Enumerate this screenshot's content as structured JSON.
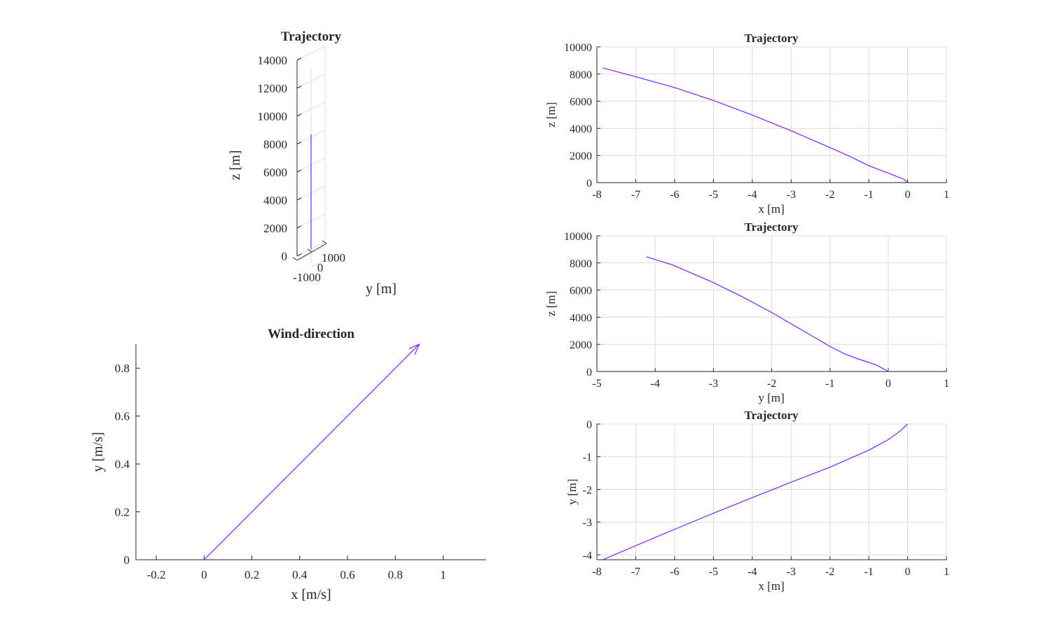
{
  "colors": {
    "series": "#7f1fff",
    "axis": "#262626",
    "grid": "#dcdcdc"
  },
  "chart_data": [
    {
      "id": "traj3d",
      "type": "line",
      "title": "Trajectory",
      "zlabel": "z [m]",
      "ylabel": "y [m]",
      "zlim": [
        0,
        14000
      ],
      "z_ticks": [
        0,
        2000,
        4000,
        6000,
        8000,
        10000,
        12000,
        14000
      ],
      "y_ticks": [
        -1000,
        0,
        1000
      ],
      "z_tick_labels": [
        "0",
        "2000",
        "4000",
        "6000",
        "8000",
        "10000",
        "12000",
        "14000"
      ],
      "y_tick_labels": [
        "-1000",
        "0",
        "1000"
      ],
      "series": [
        {
          "z": [
            0,
            8500
          ]
        }
      ]
    },
    {
      "id": "wind",
      "type": "line",
      "title": "Wind-direction",
      "xlabel": "x [m/s]",
      "ylabel": "y [m/s]",
      "xlim": [
        -0.2853,
        1.1803
      ],
      "ylim": [
        0,
        0.9
      ],
      "x_ticks": [
        -0.2,
        0,
        0.2,
        0.4,
        0.6,
        0.8,
        1
      ],
      "y_ticks": [
        0,
        0.2,
        0.4,
        0.6,
        0.8
      ],
      "x_tick_labels": [
        "-0.2",
        "0",
        "0.2",
        "0.4",
        "0.6",
        "0.8",
        "1"
      ],
      "y_tick_labels": [
        "0",
        "0.2",
        "0.4",
        "0.6",
        "0.8"
      ],
      "grid": false,
      "arrow": {
        "x0": 0,
        "y0": 0,
        "dx": 0.9,
        "dy": 0.9
      }
    },
    {
      "id": "xz",
      "type": "line",
      "title": "Trajectory",
      "xlabel": "x [m]",
      "ylabel": "z [m]",
      "xlim": [
        -8,
        1
      ],
      "ylim": [
        0,
        10000
      ],
      "x_ticks": [
        -8,
        -7,
        -6,
        -5,
        -4,
        -3,
        -2,
        -1,
        0,
        1
      ],
      "y_ticks": [
        0,
        2000,
        4000,
        6000,
        8000,
        10000
      ],
      "x_tick_labels": [
        "-8",
        "-7",
        "-6",
        "-5",
        "-4",
        "-3",
        "-2",
        "-1",
        "0",
        "1"
      ],
      "y_tick_labels": [
        "0",
        "2000",
        "4000",
        "6000",
        "8000",
        "10000"
      ],
      "grid": true,
      "series": [
        {
          "x": [
            -7.85,
            -7,
            -6,
            -5,
            -4,
            -3,
            -2,
            -1.5,
            -1,
            -0.5,
            -0.1,
            0
          ],
          "y": [
            8450,
            7800,
            7000,
            6050,
            4980,
            3820,
            2580,
            1950,
            1250,
            700,
            250,
            0
          ]
        }
      ]
    },
    {
      "id": "yz",
      "type": "line",
      "title": "Trajectory",
      "xlabel": "y [m]",
      "ylabel": "z [m]",
      "xlim": [
        -5,
        1
      ],
      "ylim": [
        0,
        10000
      ],
      "x_ticks": [
        -5,
        -4,
        -3,
        -2,
        -1,
        0,
        1
      ],
      "y_ticks": [
        0,
        2000,
        4000,
        6000,
        8000,
        10000
      ],
      "x_tick_labels": [
        "-5",
        "-4",
        "-3",
        "-2",
        "-1",
        "0",
        "1"
      ],
      "y_tick_labels": [
        "0",
        "2000",
        "4000",
        "6000",
        "8000",
        "10000"
      ],
      "grid": true,
      "series": [
        {
          "x": [
            -4.15,
            -3.7,
            -3,
            -2.5,
            -2,
            -1.5,
            -1,
            -0.75,
            -0.5,
            -0.2,
            0
          ],
          "y": [
            8450,
            7850,
            6550,
            5500,
            4350,
            3100,
            1850,
            1300,
            900,
            480,
            0
          ]
        }
      ]
    },
    {
      "id": "xy",
      "type": "line",
      "title": "Trajectory",
      "xlabel": "x [m]",
      "ylabel": "y [m]",
      "xlim": [
        -8,
        1
      ],
      "ylim": [
        -4.15,
        0
      ],
      "x_ticks": [
        -8,
        -7,
        -6,
        -5,
        -4,
        -3,
        -2,
        -1,
        0,
        1
      ],
      "y_ticks": [
        -4,
        -3,
        -2,
        -1,
        0
      ],
      "x_tick_labels": [
        "-8",
        "-7",
        "-6",
        "-5",
        "-4",
        "-3",
        "-2",
        "-1",
        "0",
        "1"
      ],
      "y_tick_labels": [
        "-4",
        "-3",
        "-2",
        "-1",
        "0"
      ],
      "grid": true,
      "series": [
        {
          "x": [
            -7.85,
            -7,
            -6,
            -5,
            -4,
            -3,
            -2,
            -1.5,
            -1,
            -0.5,
            -0.2,
            0
          ],
          "y": [
            -4.15,
            -3.72,
            -3.22,
            -2.73,
            -2.25,
            -1.78,
            -1.32,
            -1.06,
            -0.8,
            -0.48,
            -0.22,
            0
          ]
        }
      ]
    }
  ]
}
